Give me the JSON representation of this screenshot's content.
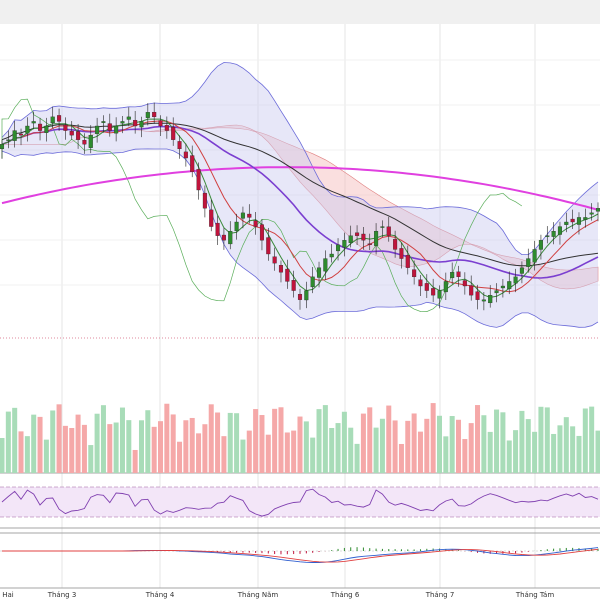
{
  "chart_data": {
    "type": "candlestick",
    "colors": {
      "up": "#2e8b2e",
      "down": "#c0143c",
      "bb_band": "#6b6bd9",
      "bb_fill": "#c9c9f0",
      "ma_fast": "#d04040",
      "ma_mid": "#3a8a3a",
      "ma_slow_purple": "#7b3fd0",
      "ma_dark": "#333333",
      "ma_magenta": "#e040e0",
      "chikou": "#5aae5a",
      "cloud_red": "#f4b8b8",
      "cloud_green": "#c8e8c8",
      "volume_up": "#a8dcb8",
      "volume_down": "#f5a8a8",
      "rsi": "#8040b0",
      "macd": "#3060d0",
      "signal": "#e04040"
    },
    "x_tick_labels": [
      "Hai",
      "Tháng 3",
      "Tháng 4",
      "Tháng Năm",
      "Tháng 6",
      "Tháng 7",
      "Tháng Tám"
    ],
    "price_series": [
      100,
      101,
      103,
      102,
      104,
      105,
      103,
      104,
      106,
      105,
      103,
      102,
      101,
      100,
      102,
      104,
      105,
      103,
      104,
      105,
      106,
      104,
      105,
      107,
      106,
      104,
      103,
      101,
      99,
      97,
      94,
      90,
      86,
      82,
      80,
      79,
      81,
      83,
      85,
      84,
      82,
      79,
      76,
      74,
      72,
      70,
      68,
      66,
      68,
      71,
      73,
      75,
      76,
      78,
      79,
      80,
      80,
      79,
      78,
      81,
      82,
      80,
      77,
      75,
      73,
      71,
      69,
      68,
      67,
      68,
      70,
      72,
      71,
      69,
      67,
      66,
      66,
      67,
      68,
      69,
      70,
      71,
      73,
      75,
      77,
      79,
      80,
      81,
      82,
      83,
      83,
      84,
      84,
      85,
      86
    ]
  }
}
